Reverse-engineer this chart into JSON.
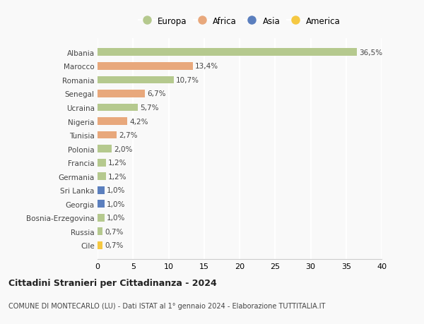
{
  "countries": [
    "Albania",
    "Marocco",
    "Romania",
    "Senegal",
    "Ucraina",
    "Nigeria",
    "Tunisia",
    "Polonia",
    "Francia",
    "Germania",
    "Sri Lanka",
    "Georgia",
    "Bosnia-Erzegovina",
    "Russia",
    "Cile"
  ],
  "values": [
    36.5,
    13.4,
    10.7,
    6.7,
    5.7,
    4.2,
    2.7,
    2.0,
    1.2,
    1.2,
    1.0,
    1.0,
    1.0,
    0.7,
    0.7
  ],
  "labels": [
    "36,5%",
    "13,4%",
    "10,7%",
    "6,7%",
    "5,7%",
    "4,2%",
    "2,7%",
    "2,0%",
    "1,2%",
    "1,2%",
    "1,0%",
    "1,0%",
    "1,0%",
    "0,7%",
    "0,7%"
  ],
  "continents": [
    "Europa",
    "Africa",
    "Europa",
    "Africa",
    "Europa",
    "Africa",
    "Africa",
    "Europa",
    "Europa",
    "Europa",
    "Asia",
    "Asia",
    "Europa",
    "Europa",
    "America"
  ],
  "colors": {
    "Europa": "#b5c98e",
    "Africa": "#e8a87c",
    "Asia": "#5b7fbe",
    "America": "#f5c842"
  },
  "title": "Cittadini Stranieri per Cittadinanza - 2024",
  "subtitle": "COMUNE DI MONTECARLO (LU) - Dati ISTAT al 1° gennaio 2024 - Elaborazione TUTTITALIA.IT",
  "xlim": [
    0,
    40
  ],
  "xticks": [
    0,
    5,
    10,
    15,
    20,
    25,
    30,
    35,
    40
  ],
  "background_color": "#f9f9f9",
  "grid_color": "#ffffff",
  "legend_order": [
    "Europa",
    "Africa",
    "Asia",
    "America"
  ]
}
